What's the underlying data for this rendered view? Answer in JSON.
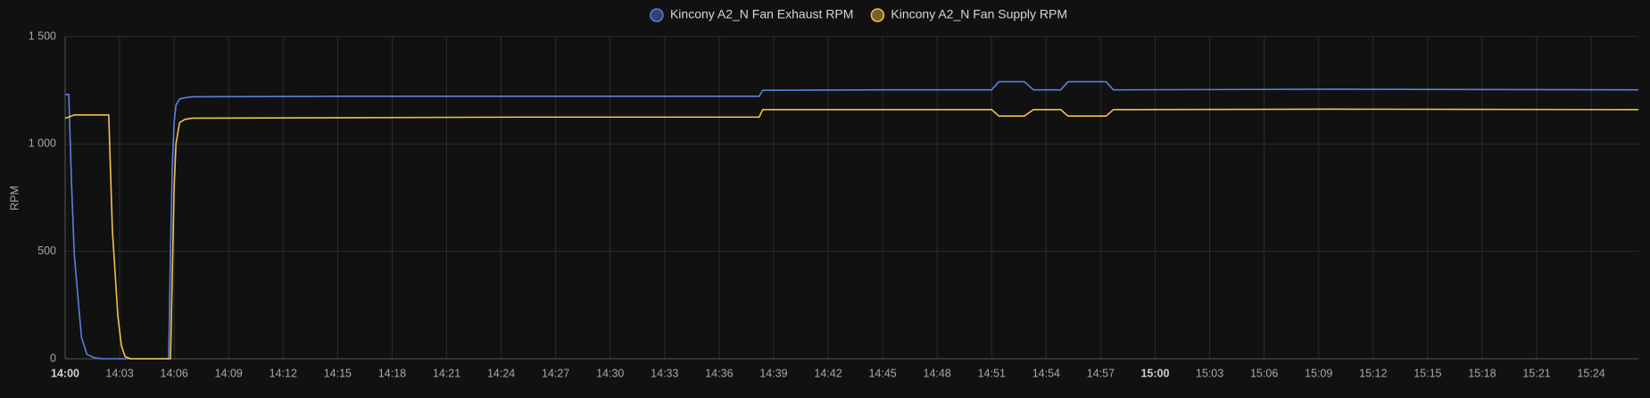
{
  "chart_data": {
    "type": "line",
    "x": [
      0,
      0.2,
      0.35,
      0.5,
      0.7,
      0.9,
      1.2,
      1.6,
      2.0,
      2.4,
      2.6,
      2.75,
      2.9,
      3.1,
      3.3,
      3.6,
      5.7,
      5.8,
      5.9,
      6.0,
      6.1,
      6.3,
      6.6,
      7.0,
      15,
      25,
      38.2,
      38.4,
      45,
      51.0,
      51.4,
      52.8,
      53.3,
      54.8,
      55.2,
      57.3,
      57.7,
      70,
      86.6
    ],
    "series": [
      {
        "name": "Kincony A2_N Fan Exhaust RPM",
        "color": "#5b7fe0",
        "values": [
          1230,
          1230,
          820,
          490,
          290,
          100,
          20,
          5,
          0,
          0,
          0,
          0,
          0,
          0,
          0,
          0,
          0,
          500,
          900,
          1100,
          1180,
          1210,
          1215,
          1220,
          1222,
          1222,
          1222,
          1250,
          1252,
          1252,
          1290,
          1290,
          1252,
          1252,
          1290,
          1290,
          1252,
          1255,
          1252
        ]
      },
      {
        "name": "Kincony A2_N Fan Supply RPM",
        "color": "#f2c14e",
        "values": [
          1120,
          1125,
          1130,
          1135,
          1135,
          1135,
          1135,
          1135,
          1135,
          1135,
          600,
          400,
          200,
          60,
          10,
          0,
          0,
          0,
          400,
          800,
          1000,
          1100,
          1115,
          1120,
          1122,
          1125,
          1125,
          1160,
          1160,
          1160,
          1130,
          1130,
          1160,
          1160,
          1130,
          1130,
          1160,
          1162,
          1160
        ]
      }
    ],
    "y_label": "RPM",
    "xlim": [
      0,
      86.6
    ],
    "xticks": [
      {
        "value": 0,
        "label": "14:00"
      },
      {
        "value": 3,
        "label": "14:03"
      },
      {
        "value": 6,
        "label": "14:06"
      },
      {
        "value": 9,
        "label": "14:09"
      },
      {
        "value": 12,
        "label": "14:12"
      },
      {
        "value": 15,
        "label": "14:15"
      },
      {
        "value": 18,
        "label": "14:18"
      },
      {
        "value": 21,
        "label": "14:21"
      },
      {
        "value": 24,
        "label": "14:24"
      },
      {
        "value": 27,
        "label": "14:27"
      },
      {
        "value": 30,
        "label": "14:30"
      },
      {
        "value": 33,
        "label": "14:33"
      },
      {
        "value": 36,
        "label": "14:36"
      },
      {
        "value": 39,
        "label": "14:39"
      },
      {
        "value": 42,
        "label": "14:42"
      },
      {
        "value": 45,
        "label": "14:45"
      },
      {
        "value": 48,
        "label": "14:48"
      },
      {
        "value": 51,
        "label": "14:51"
      },
      {
        "value": 54,
        "label": "14:54"
      },
      {
        "value": 57,
        "label": "14:57"
      },
      {
        "value": 60,
        "label": "15:00"
      },
      {
        "value": 63,
        "label": "15:03"
      },
      {
        "value": 66,
        "label": "15:06"
      },
      {
        "value": 69,
        "label": "15:09"
      },
      {
        "value": 72,
        "label": "15:12"
      },
      {
        "value": 75,
        "label": "15:15"
      },
      {
        "value": 78,
        "label": "15:18"
      },
      {
        "value": 81,
        "label": "15:21"
      },
      {
        "value": 84,
        "label": "15:24"
      }
    ],
    "ylim": [
      0,
      1500
    ],
    "yticks": [
      0,
      500,
      {
        "value": 1000,
        "label": "1 000"
      },
      {
        "value": 1500,
        "label": "1 500"
      }
    ],
    "grid": true,
    "legend": "top"
  }
}
